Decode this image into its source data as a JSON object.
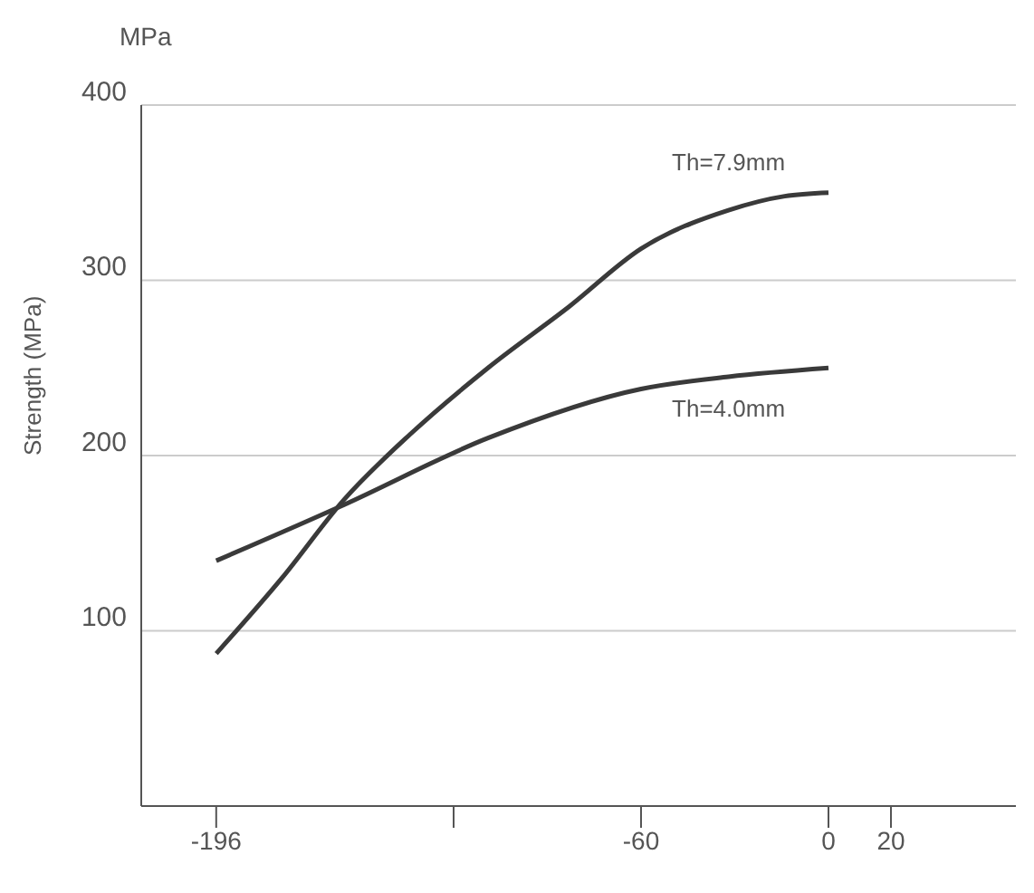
{
  "chart_data": {
    "type": "line",
    "ylabel": "Strength (MPa)",
    "annotations": [
      "MPa"
    ],
    "xlim": [
      -220,
      60
    ],
    "xticks": [
      -196,
      {
        "value": -120,
        "label": null
      },
      -60,
      0,
      20
    ],
    "ylim": [
      0,
      400
    ],
    "yticks": [
      100,
      200,
      300,
      400
    ],
    "grid": "y",
    "legend": false,
    "marker": "none",
    "line_style": "solid",
    "series": [
      {
        "name": "Th=7.9mm",
        "color": "#3a3a3a",
        "x": [
          -196,
          -175,
          -155,
          -134,
          -109,
          -83,
          -60,
          -32,
          -14,
          0
        ],
        "values": [
          87,
          130,
          175,
          212,
          250,
          285,
          318,
          340,
          348,
          350
        ]
      },
      {
        "name": "Th=4.0mm",
        "color": "#3a3a3a",
        "x": [
          -196,
          -155,
          -109,
          -60,
          -32,
          0
        ],
        "values": [
          140,
          172,
          210,
          238,
          245,
          250
        ]
      }
    ]
  }
}
